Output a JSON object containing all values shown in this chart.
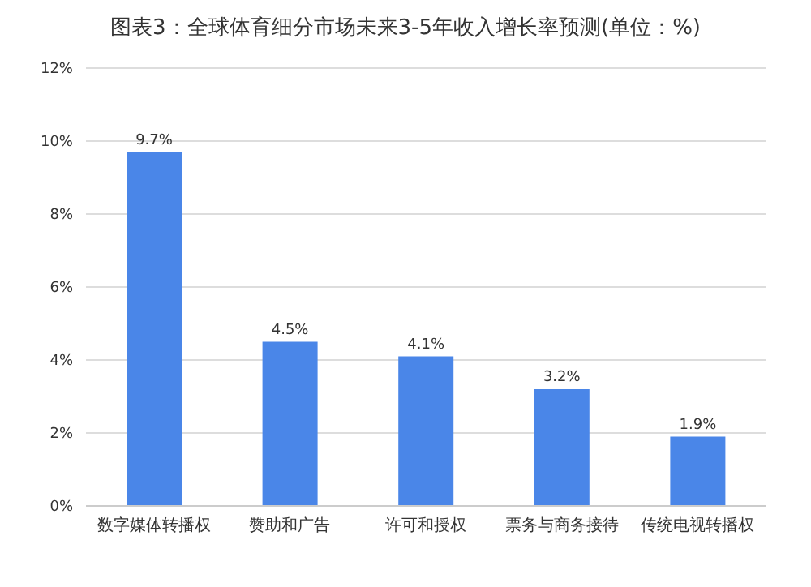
{
  "chart_data": {
    "type": "bar",
    "title": "图表3：全球体育细分市场未来3-5年收入增长率预测(单位：%)",
    "categories": [
      "数字媒体转播权",
      "赞助和广告",
      "许可和授权",
      "票务与商务接待",
      "传统电视转播权"
    ],
    "values": [
      9.7,
      4.5,
      4.1,
      3.2,
      1.9
    ],
    "value_labels": [
      "9.7%",
      "4.5%",
      "4.1%",
      "3.2%",
      "1.9%"
    ],
    "color": "#4a86e8",
    "ylim": [
      0,
      12
    ],
    "yticks": [
      {
        "value": 0,
        "label": "0%"
      },
      {
        "value": 2,
        "label": "2%"
      },
      {
        "value": 4,
        "label": "4%"
      },
      {
        "value": 6,
        "label": "6%"
      },
      {
        "value": 8,
        "label": "8%"
      },
      {
        "value": 10,
        "label": "10%"
      },
      {
        "value": 12,
        "label": "12%"
      }
    ],
    "grid": "y"
  }
}
